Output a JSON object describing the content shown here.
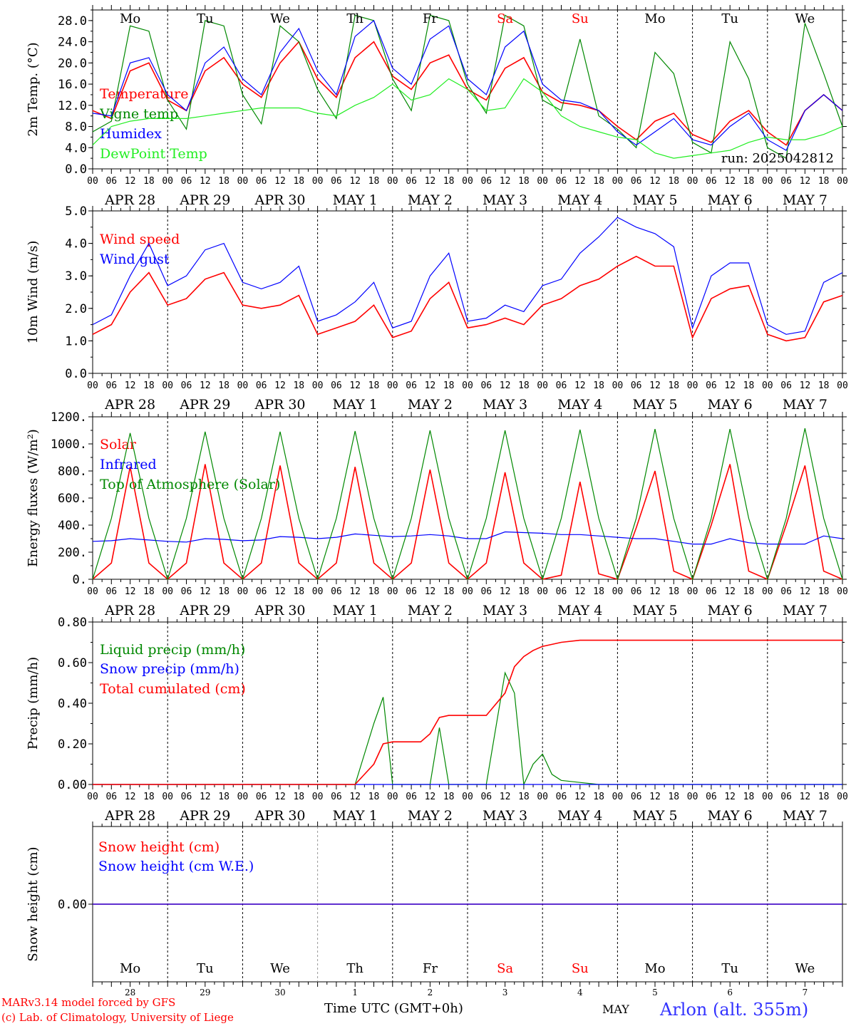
{
  "colors": {
    "red": "#ff0000",
    "green": "#008800",
    "blue": "#0000ff",
    "lightgreen": "#22ee22",
    "weekend": "#ff0000",
    "weekday": "#000000"
  },
  "footer": {
    "credit_line1": "MARv3.14 model forced by GFS",
    "credit_line2": "(c) Lab. of Climatology, University of Liege",
    "xlabel": "Time UTC (GMT+0h)",
    "month": "MAY",
    "station": "Arlon (alt. 355m)"
  },
  "run_label": "run: 2025042812",
  "hour_ticks": [
    "00",
    "06",
    "12",
    "18"
  ],
  "days": [
    {
      "dow": "Mo",
      "date": "APR 28",
      "num": "28",
      "weekend": false
    },
    {
      "dow": "Tu",
      "date": "APR 29",
      "num": "29",
      "weekend": false
    },
    {
      "dow": "We",
      "date": "APR 30",
      "num": "30",
      "weekend": false
    },
    {
      "dow": "Th",
      "date": "MAY  1",
      "num": "1",
      "weekend": false
    },
    {
      "dow": "Fr",
      "date": "MAY  2",
      "num": "2",
      "weekend": false
    },
    {
      "dow": "Sa",
      "date": "MAY  3",
      "num": "3",
      "weekend": true
    },
    {
      "dow": "Su",
      "date": "MAY  4",
      "num": "4",
      "weekend": true
    },
    {
      "dow": "Mo",
      "date": "MAY  5",
      "num": "5",
      "weekend": false
    },
    {
      "dow": "Tu",
      "date": "MAY  6",
      "num": "6",
      "weekend": false
    },
    {
      "dow": "We",
      "date": "MAY  7",
      "num": "7",
      "weekend": false
    }
  ],
  "chart_data": [
    {
      "type": "line",
      "ylabel": "2m Temp. (°C)",
      "ylim": [
        0,
        30
      ],
      "yticks": [
        "0.0",
        "4.0",
        "8.0",
        "12.0",
        "16.0",
        "20.0",
        "24.0",
        "28.0"
      ],
      "ytick_values": [
        0,
        4,
        8,
        12,
        16,
        20,
        24,
        28
      ],
      "x_hours": [
        0,
        6,
        12,
        18,
        24,
        30,
        36,
        42,
        48,
        54,
        60,
        66,
        72,
        78,
        84,
        90,
        96,
        102,
        108,
        114,
        120,
        126,
        132,
        138,
        144,
        150,
        156,
        162,
        168,
        174,
        180,
        186,
        192,
        198,
        204,
        210,
        216,
        222,
        228,
        234,
        240
      ],
      "series": [
        {
          "name": "Temperature",
          "color": "red",
          "values": [
            11.0,
            9.5,
            18.5,
            20.0,
            13.0,
            11.0,
            18.5,
            21.0,
            16.0,
            13.5,
            20.0,
            24.0,
            17.0,
            13.5,
            21.0,
            24.0,
            17.5,
            15.0,
            20.0,
            21.5,
            15.0,
            13.0,
            19.0,
            21.0,
            14.5,
            12.5,
            12.0,
            11.0,
            8.0,
            5.5,
            9.0,
            10.5,
            6.5,
            5.0,
            9.0,
            11.0,
            7.0,
            4.5,
            11.0,
            14.0,
            11.0
          ]
        },
        {
          "name": "Vigne temp",
          "color": "green",
          "values": [
            7.0,
            9.0,
            27.0,
            26.0,
            13.0,
            7.5,
            28.0,
            27.0,
            14.0,
            8.5,
            27.0,
            24.0,
            15.0,
            9.5,
            29.0,
            28.0,
            17.0,
            11.0,
            29.0,
            28.0,
            16.0,
            10.5,
            29.0,
            27.0,
            13.0,
            11.0,
            24.5,
            10.0,
            7.5,
            4.0,
            22.0,
            18.0,
            5.0,
            3.0,
            24.0,
            17.0,
            4.0,
            2.0,
            27.5,
            18.0,
            8.0
          ]
        },
        {
          "name": "Humidex",
          "color": "blue",
          "values": [
            10.5,
            10.0,
            20.0,
            21.0,
            14.0,
            11.0,
            20.0,
            23.0,
            17.0,
            14.0,
            22.0,
            26.5,
            18.5,
            14.0,
            25.0,
            28.0,
            19.0,
            16.0,
            24.5,
            27.0,
            17.0,
            14.0,
            23.0,
            26.0,
            16.0,
            13.0,
            12.5,
            11.0,
            7.0,
            4.5,
            7.0,
            9.5,
            5.5,
            4.5,
            8.0,
            10.5,
            5.5,
            3.5,
            11.0,
            14.0,
            11.0
          ]
        },
        {
          "name": "DewPoint Temp",
          "color": "lightgreen",
          "values": [
            4.5,
            8.0,
            9.0,
            9.5,
            9.5,
            9.5,
            10.0,
            10.5,
            11.0,
            11.5,
            11.5,
            11.5,
            10.5,
            10.0,
            12.0,
            13.5,
            16.0,
            13.0,
            14.0,
            17.0,
            15.0,
            11.0,
            11.5,
            17.0,
            14.5,
            10.0,
            8.0,
            7.0,
            6.0,
            5.5,
            3.0,
            2.0,
            2.5,
            3.0,
            3.5,
            5.0,
            6.0,
            5.5,
            5.5,
            6.5,
            8.0
          ]
        }
      ]
    },
    {
      "type": "line",
      "ylabel": "10m Wind (m/s)",
      "ylim": [
        0,
        5
      ],
      "yticks": [
        "0.0",
        "1.0",
        "2.0",
        "3.0",
        "4.0",
        "5.0"
      ],
      "ytick_values": [
        0,
        1,
        2,
        3,
        4,
        5
      ],
      "x_hours": [
        0,
        6,
        12,
        18,
        24,
        30,
        36,
        42,
        48,
        54,
        60,
        66,
        72,
        78,
        84,
        90,
        96,
        102,
        108,
        114,
        120,
        126,
        132,
        138,
        144,
        150,
        156,
        162,
        168,
        174,
        180,
        186,
        192,
        198,
        204,
        210,
        216,
        222,
        228,
        234,
        240
      ],
      "series": [
        {
          "name": "Wind speed",
          "color": "red",
          "values": [
            1.2,
            1.5,
            2.5,
            3.1,
            2.1,
            2.3,
            2.9,
            3.1,
            2.1,
            2.0,
            2.1,
            2.4,
            1.2,
            1.4,
            1.6,
            2.1,
            1.1,
            1.3,
            2.3,
            2.8,
            1.4,
            1.5,
            1.7,
            1.5,
            2.1,
            2.3,
            2.7,
            2.9,
            3.3,
            3.6,
            3.3,
            3.3,
            1.1,
            2.3,
            2.6,
            2.7,
            1.2,
            1.0,
            1.1,
            2.2,
            2.4
          ]
        },
        {
          "name": "Wind gust",
          "color": "blue",
          "values": [
            1.5,
            1.8,
            3.0,
            4.0,
            2.7,
            3.0,
            3.8,
            4.0,
            2.8,
            2.6,
            2.8,
            3.3,
            1.6,
            1.8,
            2.2,
            2.8,
            1.4,
            1.6,
            3.0,
            3.7,
            1.6,
            1.7,
            2.1,
            1.9,
            2.7,
            2.9,
            3.7,
            4.2,
            4.8,
            4.5,
            4.3,
            3.9,
            1.4,
            3.0,
            3.4,
            3.4,
            1.5,
            1.2,
            1.3,
            2.8,
            3.1
          ]
        }
      ]
    },
    {
      "type": "line",
      "ylabel": "Energy fluxes (W/m²)",
      "ylim": [
        0,
        1200
      ],
      "yticks": [
        "0.",
        "200.",
        "400.",
        "600.",
        "800.",
        "1000.",
        "1200."
      ],
      "ytick_values": [
        0,
        200,
        400,
        600,
        800,
        1000,
        1200
      ],
      "x_hours": [
        0,
        6,
        12,
        18,
        24,
        30,
        36,
        42,
        48,
        54,
        60,
        66,
        72,
        78,
        84,
        90,
        96,
        102,
        108,
        114,
        120,
        126,
        132,
        138,
        144,
        150,
        156,
        162,
        168,
        174,
        180,
        186,
        192,
        198,
        204,
        210,
        216,
        222,
        228,
        234,
        240
      ],
      "series": [
        {
          "name": "Solar",
          "color": "red",
          "values": [
            0,
            120,
            830,
            120,
            0,
            120,
            850,
            120,
            0,
            120,
            840,
            120,
            0,
            120,
            830,
            120,
            0,
            120,
            810,
            120,
            0,
            120,
            790,
            120,
            0,
            30,
            720,
            40,
            0,
            380,
            800,
            60,
            0,
            400,
            850,
            60,
            0,
            400,
            840,
            60,
            0
          ]
        },
        {
          "name": "Infrared",
          "color": "blue",
          "values": [
            280,
            285,
            300,
            290,
            280,
            275,
            300,
            295,
            285,
            290,
            315,
            310,
            300,
            310,
            335,
            325,
            315,
            320,
            330,
            320,
            300,
            300,
            350,
            345,
            340,
            330,
            330,
            320,
            310,
            300,
            300,
            280,
            260,
            260,
            300,
            270,
            260,
            260,
            260,
            320,
            300
          ]
        },
        {
          "name": "Top of Atmosphere (Solar)",
          "color": "green",
          "values": [
            0,
            450,
            1080,
            450,
            0,
            450,
            1090,
            450,
            0,
            450,
            1090,
            450,
            0,
            450,
            1095,
            450,
            0,
            450,
            1100,
            450,
            0,
            450,
            1100,
            450,
            0,
            450,
            1105,
            450,
            0,
            450,
            1110,
            450,
            0,
            450,
            1110,
            450,
            0,
            450,
            1115,
            450,
            0
          ]
        }
      ]
    },
    {
      "type": "line",
      "ylabel": "Precip (mm/h)",
      "ylim": [
        0,
        0.8
      ],
      "yticks": [
        "0.00",
        "0.20",
        "0.40",
        "0.60",
        "0.80"
      ],
      "ytick_values": [
        0,
        0.2,
        0.4,
        0.6,
        0.8
      ],
      "x_hours": [
        0,
        84,
        90,
        93,
        96,
        99,
        102,
        105,
        108,
        111,
        114,
        117,
        120,
        126,
        132,
        135,
        138,
        141,
        144,
        147,
        150,
        156,
        162,
        168,
        174,
        180,
        240
      ],
      "series": [
        {
          "name": "Liquid precip (mm/h)",
          "color": "green",
          "values": [
            0,
            0,
            0.3,
            0.43,
            0,
            0,
            0,
            0,
            0,
            0.28,
            0,
            0,
            0,
            0,
            0.55,
            0.45,
            0,
            0.1,
            0.15,
            0.05,
            0.02,
            0.01,
            0,
            0,
            0,
            0,
            0
          ]
        },
        {
          "name": "Snow precip (mm/h)",
          "color": "blue",
          "values": [
            0,
            0,
            0,
            0,
            0,
            0,
            0,
            0,
            0,
            0,
            0,
            0,
            0,
            0,
            0,
            0,
            0,
            0,
            0,
            0,
            0,
            0,
            0,
            0,
            0,
            0,
            0
          ]
        },
        {
          "name": "Total cumulated (cm)",
          "color": "red",
          "values": [
            0,
            0,
            0.1,
            0.2,
            0.21,
            0.21,
            0.21,
            0.21,
            0.25,
            0.33,
            0.34,
            0.34,
            0.34,
            0.34,
            0.45,
            0.58,
            0.63,
            0.66,
            0.68,
            0.69,
            0.7,
            0.71,
            0.71,
            0.71,
            0.71,
            0.71,
            0.71
          ]
        }
      ]
    },
    {
      "type": "line",
      "ylabel": "Snow height (cm)",
      "ylim": [
        -1,
        1
      ],
      "yticks": [
        "0.00"
      ],
      "ytick_values": [
        0
      ],
      "x_hours": [
        0,
        240
      ],
      "series": [
        {
          "name": "Snow height (cm)",
          "color": "red",
          "values": [
            0,
            0
          ]
        },
        {
          "name": "Snow height (cm W.E.)",
          "color": "blue",
          "values": [
            0,
            0
          ]
        }
      ]
    }
  ]
}
